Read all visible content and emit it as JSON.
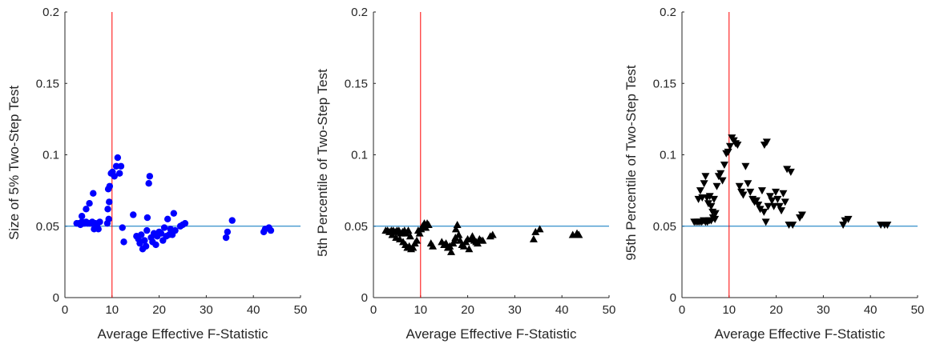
{
  "chart_data": [
    {
      "type": "scatter",
      "xlabel": "Average Effective F-Statistic",
      "ylabel": "Size of 5% Two-Step Test",
      "xlim": [
        0,
        50
      ],
      "ylim": [
        0,
        0.2
      ],
      "xticks": [
        "0",
        "10",
        "20",
        "30",
        "40",
        "50"
      ],
      "yticks": [
        "0",
        "0.05",
        "0.1",
        "0.15",
        "0.2"
      ],
      "marker": "circle",
      "color": "#0000ff",
      "reference_lines": {
        "vertical_x": 10,
        "horizontal_y": 0.05,
        "vertical_color": "#ff0000",
        "horizontal_color": "#0072bd"
      },
      "points": [
        [
          2.5,
          0.052
        ],
        [
          3.0,
          0.052
        ],
        [
          3.3,
          0.051
        ],
        [
          3.6,
          0.053
        ],
        [
          3.9,
          0.052
        ],
        [
          4.2,
          0.052
        ],
        [
          4.5,
          0.053
        ],
        [
          4.8,
          0.052
        ],
        [
          5.2,
          0.052
        ],
        [
          5.5,
          0.052
        ],
        [
          5.8,
          0.053
        ],
        [
          6.2,
          0.048
        ],
        [
          6.5,
          0.052
        ],
        [
          6.8,
          0.051
        ],
        [
          7.1,
          0.048
        ],
        [
          7.4,
          0.053
        ],
        [
          3.6,
          0.057
        ],
        [
          4.5,
          0.062
        ],
        [
          5.2,
          0.066
        ],
        [
          6.0,
          0.073
        ],
        [
          9.0,
          0.052
        ],
        [
          9.3,
          0.055
        ],
        [
          9.1,
          0.062
        ],
        [
          9.4,
          0.067
        ],
        [
          9.2,
          0.076
        ],
        [
          9.5,
          0.078
        ],
        [
          9.8,
          0.087
        ],
        [
          10.1,
          0.088
        ],
        [
          10.5,
          0.085
        ],
        [
          10.9,
          0.092
        ],
        [
          11.2,
          0.098
        ],
        [
          11.6,
          0.087
        ],
        [
          11.9,
          0.092
        ],
        [
          12.2,
          0.049
        ],
        [
          12.5,
          0.039
        ],
        [
          14.5,
          0.058
        ],
        [
          15.2,
          0.043
        ],
        [
          15.6,
          0.041
        ],
        [
          15.9,
          0.038
        ],
        [
          16.2,
          0.044
        ],
        [
          16.5,
          0.034
        ],
        [
          16.9,
          0.04
        ],
        [
          17.2,
          0.036
        ],
        [
          17.5,
          0.056
        ],
        [
          17.8,
          0.08
        ],
        [
          18.0,
          0.085
        ],
        [
          17.4,
          0.047
        ],
        [
          18.3,
          0.042
        ],
        [
          18.6,
          0.039
        ],
        [
          18.9,
          0.045
        ],
        [
          19.3,
          0.037
        ],
        [
          19.6,
          0.043
        ],
        [
          20.0,
          0.046
        ],
        [
          20.4,
          0.045
        ],
        [
          20.8,
          0.04
        ],
        [
          21.1,
          0.049
        ],
        [
          21.5,
          0.043
        ],
        [
          21.8,
          0.055
        ],
        [
          22.1,
          0.044
        ],
        [
          22.4,
          0.048
        ],
        [
          22.8,
          0.044
        ],
        [
          23.1,
          0.059
        ],
        [
          23.4,
          0.047
        ],
        [
          24.5,
          0.05
        ],
        [
          25.0,
          0.051
        ],
        [
          25.5,
          0.052
        ],
        [
          34.2,
          0.042
        ],
        [
          34.5,
          0.046
        ],
        [
          35.5,
          0.054
        ],
        [
          42.2,
          0.046
        ],
        [
          42.5,
          0.048
        ],
        [
          43.3,
          0.049
        ],
        [
          43.7,
          0.047
        ]
      ]
    },
    {
      "type": "scatter",
      "xlabel": "Average Effective F-Statistic",
      "ylabel": "5th Percentile of Two-Step Test",
      "xlim": [
        0,
        50
      ],
      "ylim": [
        0,
        0.2
      ],
      "xticks": [
        "0",
        "10",
        "20",
        "30",
        "40",
        "50"
      ],
      "yticks": [
        "0",
        "0.05",
        "0.1",
        "0.15",
        "0.2"
      ],
      "marker": "triangle-up",
      "color": "#000000",
      "reference_lines": {
        "vertical_x": 10,
        "horizontal_y": 0.05,
        "vertical_color": "#ff0000",
        "horizontal_color": "#0072bd"
      },
      "points": [
        [
          2.6,
          0.047
        ],
        [
          3.0,
          0.047
        ],
        [
          3.4,
          0.046
        ],
        [
          3.8,
          0.047
        ],
        [
          4.2,
          0.047
        ],
        [
          4.6,
          0.046
        ],
        [
          5.0,
          0.047
        ],
        [
          5.4,
          0.047
        ],
        [
          5.8,
          0.045
        ],
        [
          6.2,
          0.046
        ],
        [
          6.6,
          0.047
        ],
        [
          7.0,
          0.045
        ],
        [
          7.4,
          0.047
        ],
        [
          7.8,
          0.043
        ],
        [
          4.0,
          0.044
        ],
        [
          4.8,
          0.042
        ],
        [
          5.6,
          0.041
        ],
        [
          6.3,
          0.039
        ],
        [
          6.8,
          0.037
        ],
        [
          7.2,
          0.035
        ],
        [
          7.6,
          0.036
        ],
        [
          8.0,
          0.034
        ],
        [
          8.4,
          0.035
        ],
        [
          8.8,
          0.038
        ],
        [
          9.2,
          0.04
        ],
        [
          9.5,
          0.047
        ],
        [
          9.8,
          0.045
        ],
        [
          10.1,
          0.048
        ],
        [
          10.4,
          0.05
        ],
        [
          10.8,
          0.052
        ],
        [
          11.1,
          0.049
        ],
        [
          11.4,
          0.052
        ],
        [
          11.7,
          0.051
        ],
        [
          12.2,
          0.038
        ],
        [
          12.6,
          0.036
        ],
        [
          14.5,
          0.039
        ],
        [
          15.0,
          0.037
        ],
        [
          15.4,
          0.038
        ],
        [
          15.8,
          0.035
        ],
        [
          16.2,
          0.036
        ],
        [
          16.5,
          0.032
        ],
        [
          16.9,
          0.038
        ],
        [
          17.2,
          0.04
        ],
        [
          17.5,
          0.048
        ],
        [
          17.8,
          0.051
        ],
        [
          18.1,
          0.044
        ],
        [
          17.4,
          0.042
        ],
        [
          18.4,
          0.04
        ],
        [
          18.8,
          0.037
        ],
        [
          19.2,
          0.036
        ],
        [
          19.6,
          0.039
        ],
        [
          20.0,
          0.041
        ],
        [
          20.3,
          0.034
        ],
        [
          20.7,
          0.041
        ],
        [
          21.0,
          0.043
        ],
        [
          21.4,
          0.04
        ],
        [
          21.8,
          0.039
        ],
        [
          22.1,
          0.038
        ],
        [
          22.5,
          0.041
        ],
        [
          22.8,
          0.04
        ],
        [
          23.2,
          0.04
        ],
        [
          24.8,
          0.043
        ],
        [
          25.3,
          0.044
        ],
        [
          34.0,
          0.041
        ],
        [
          34.4,
          0.046
        ],
        [
          35.3,
          0.048
        ],
        [
          42.3,
          0.044
        ],
        [
          43.2,
          0.045
        ],
        [
          43.6,
          0.044
        ]
      ]
    },
    {
      "type": "scatter",
      "xlabel": "Average Effective F-Statistic",
      "ylabel": "95th Percentile of Two-Step Test",
      "xlim": [
        0,
        50
      ],
      "ylim": [
        0,
        0.2
      ],
      "xticks": [
        "0",
        "10",
        "20",
        "30",
        "40",
        "50"
      ],
      "yticks": [
        "0",
        "0.05",
        "0.1",
        "0.15",
        "0.2"
      ],
      "marker": "triangle-down",
      "color": "#000000",
      "reference_lines": {
        "vertical_x": 10,
        "horizontal_y": 0.05,
        "vertical_color": "#ff0000",
        "horizontal_color": "#0072bd"
      },
      "points": [
        [
          2.6,
          0.053
        ],
        [
          3.0,
          0.053
        ],
        [
          3.4,
          0.053
        ],
        [
          3.8,
          0.053
        ],
        [
          4.2,
          0.053
        ],
        [
          4.6,
          0.054
        ],
        [
          5.0,
          0.053
        ],
        [
          5.4,
          0.053
        ],
        [
          5.8,
          0.054
        ],
        [
          6.2,
          0.054
        ],
        [
          6.6,
          0.056
        ],
        [
          7.0,
          0.055
        ],
        [
          3.5,
          0.069
        ],
        [
          3.9,
          0.075
        ],
        [
          4.3,
          0.07
        ],
        [
          4.7,
          0.08
        ],
        [
          5.0,
          0.085
        ],
        [
          5.3,
          0.07
        ],
        [
          5.6,
          0.066
        ],
        [
          5.9,
          0.071
        ],
        [
          6.2,
          0.064
        ],
        [
          6.5,
          0.06
        ],
        [
          6.8,
          0.069
        ],
        [
          7.1,
          0.059
        ],
        [
          7.4,
          0.078
        ],
        [
          7.8,
          0.085
        ],
        [
          8.2,
          0.087
        ],
        [
          8.6,
          0.082
        ],
        [
          9.0,
          0.093
        ],
        [
          9.4,
          0.101
        ],
        [
          9.8,
          0.102
        ],
        [
          10.2,
          0.106
        ],
        [
          10.6,
          0.112
        ],
        [
          11.0,
          0.11
        ],
        [
          11.4,
          0.108
        ],
        [
          11.8,
          0.107
        ],
        [
          12.2,
          0.078
        ],
        [
          12.6,
          0.074
        ],
        [
          13.0,
          0.072
        ],
        [
          13.5,
          0.092
        ],
        [
          14.0,
          0.08
        ],
        [
          14.5,
          0.074
        ],
        [
          15.0,
          0.069
        ],
        [
          15.4,
          0.067
        ],
        [
          15.8,
          0.068
        ],
        [
          16.2,
          0.065
        ],
        [
          16.6,
          0.062
        ],
        [
          17.0,
          0.075
        ],
        [
          17.4,
          0.06
        ],
        [
          17.8,
          0.053
        ],
        [
          17.5,
          0.107
        ],
        [
          18.0,
          0.109
        ],
        [
          18.3,
          0.064
        ],
        [
          18.7,
          0.071
        ],
        [
          19.1,
          0.068
        ],
        [
          19.5,
          0.064
        ],
        [
          19.9,
          0.074
        ],
        [
          20.3,
          0.069
        ],
        [
          20.7,
          0.064
        ],
        [
          21.1,
          0.061
        ],
        [
          21.5,
          0.073
        ],
        [
          21.9,
          0.067
        ],
        [
          22.3,
          0.09
        ],
        [
          22.7,
          0.051
        ],
        [
          23.1,
          0.088
        ],
        [
          23.5,
          0.051
        ],
        [
          25.0,
          0.056
        ],
        [
          25.5,
          0.058
        ],
        [
          34.2,
          0.051
        ],
        [
          34.6,
          0.054
        ],
        [
          35.3,
          0.055
        ],
        [
          42.2,
          0.051
        ],
        [
          43.0,
          0.051
        ],
        [
          43.6,
          0.051
        ]
      ]
    }
  ]
}
